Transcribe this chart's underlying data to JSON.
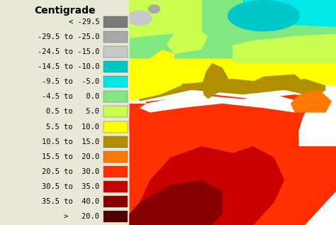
{
  "title": "Centigrade",
  "labels": [
    "< -29.5",
    "-29.5 to -25.0",
    "-24.5 to -15.0",
    "-14.5 to -10.0",
    "-9.5 to  -5.0",
    "-4.5 to   0.0",
    "0.5 to   5.0",
    "5.5 to  10.0",
    "10.5 to  15.0",
    "15.5 to  20.0",
    "20.5 to  30.0",
    "30.5 to  35.0",
    "35.5 to  40.0",
    ">   20.0"
  ],
  "colors": [
    "#7a7a7a",
    "#a8a8a8",
    "#c8c8c8",
    "#00c8c8",
    "#00e8e8",
    "#80e880",
    "#c8ff50",
    "#ffff00",
    "#b09000",
    "#ff7800",
    "#ff3000",
    "#c80000",
    "#880000",
    "#500000"
  ],
  "bg_color": "#e8e8d8",
  "title_fontsize": 10,
  "label_fontsize": 7.5
}
